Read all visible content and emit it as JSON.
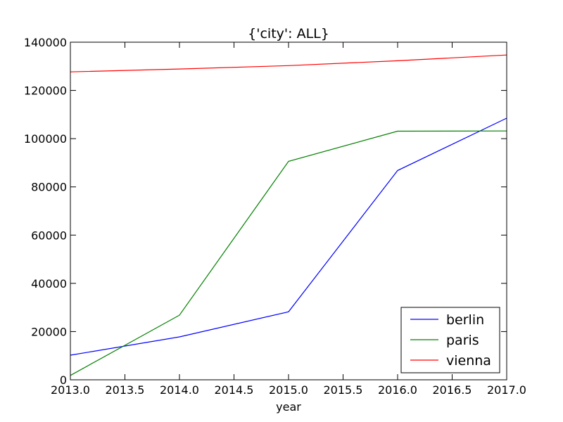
{
  "chart_data": {
    "type": "line",
    "title": "{'city': ALL}",
    "xlabel": "year",
    "ylabel": "",
    "xlim": [
      2013.0,
      2017.0
    ],
    "ylim": [
      0,
      140000
    ],
    "x_ticks": [
      "2013.0",
      "2013.5",
      "2014.0",
      "2014.5",
      "2015.0",
      "2015.5",
      "2016.0",
      "2016.5",
      "2017.0"
    ],
    "y_ticks": [
      "0",
      "20000",
      "40000",
      "60000",
      "80000",
      "100000",
      "120000",
      "140000"
    ],
    "x": [
      2013,
      2014,
      2015,
      2016,
      2017
    ],
    "series": [
      {
        "name": "berlin",
        "color": "#0000ff",
        "values": [
          10200,
          17800,
          28200,
          86800,
          108500
        ]
      },
      {
        "name": "paris",
        "color": "#008000",
        "values": [
          1800,
          26800,
          90600,
          103100,
          103200
        ]
      },
      {
        "name": "vienna",
        "color": "#ff0000",
        "values": [
          127700,
          128900,
          130300,
          132300,
          134700
        ]
      }
    ],
    "grid": false,
    "legend_position": "lower-right"
  }
}
